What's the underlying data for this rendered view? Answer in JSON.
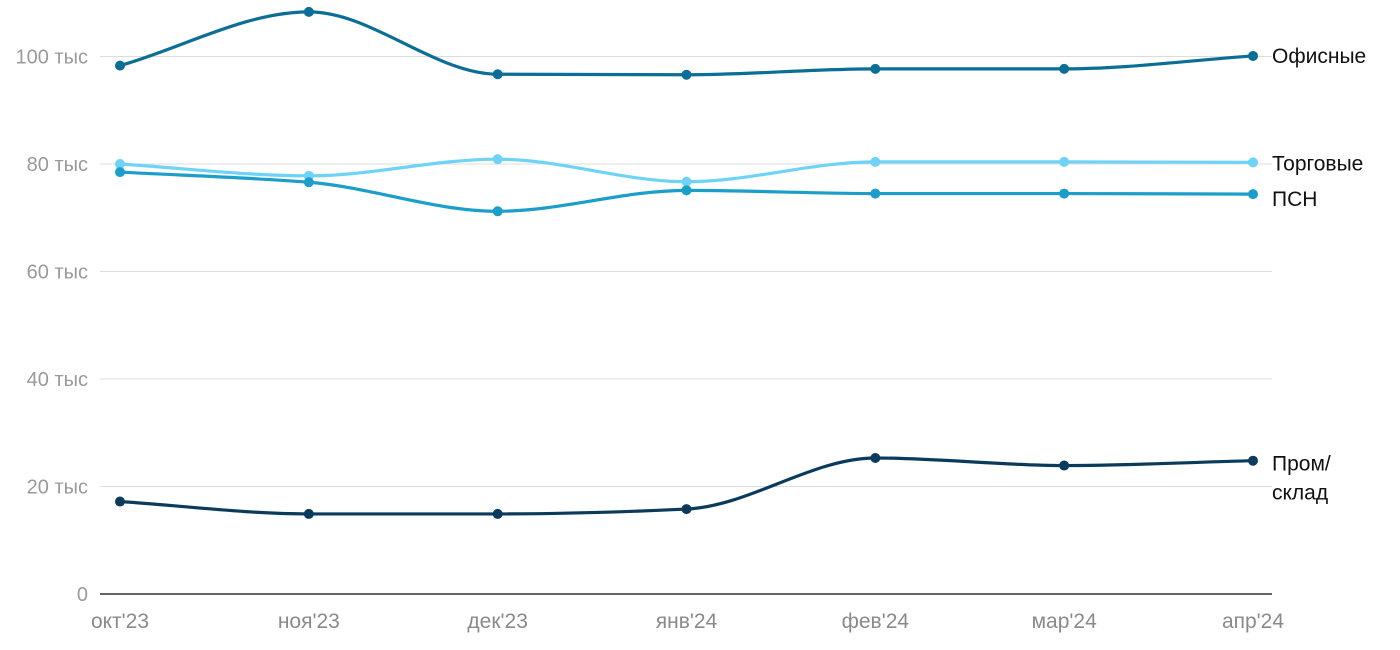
{
  "chart_data": {
    "type": "line",
    "title": "",
    "xlabel": "",
    "ylabel": "",
    "categories": [
      "окт'23",
      "ноя'23",
      "дек'23",
      "янв'24",
      "фев'24",
      "мар'24",
      "апр'24"
    ],
    "y_ticks": [
      {
        "value": 0,
        "label": "0"
      },
      {
        "value": 20000,
        "label": "20 тыс"
      },
      {
        "value": 40000,
        "label": "40 тыс"
      },
      {
        "value": 60000,
        "label": "60 тыс"
      },
      {
        "value": 80000,
        "label": "80 тыс"
      },
      {
        "value": 100000,
        "label": "100 тыс"
      }
    ],
    "ylim": [
      0,
      110000
    ],
    "grid": true,
    "legend": "direct labels at right end of lines",
    "series": [
      {
        "name": "Офисные",
        "color": "#0a6e96",
        "values": [
          98300,
          108300,
          96700,
          96600,
          97700,
          97700,
          100100
        ]
      },
      {
        "name": "Торговые",
        "color": "#6fd3f7",
        "values": [
          80000,
          77800,
          80900,
          76700,
          80400,
          80400,
          80300
        ]
      },
      {
        "name": "ПСН",
        "color": "#1b9ec9",
        "values": [
          78500,
          76600,
          71200,
          75100,
          74500,
          74500,
          74400
        ]
      },
      {
        "name": "Пром/\nсклад",
        "label_lines": [
          "Пром/",
          "склад"
        ],
        "color": "#0b3b5c",
        "values": [
          17200,
          14900,
          14900,
          15800,
          25300,
          23900,
          24800
        ]
      }
    ]
  }
}
